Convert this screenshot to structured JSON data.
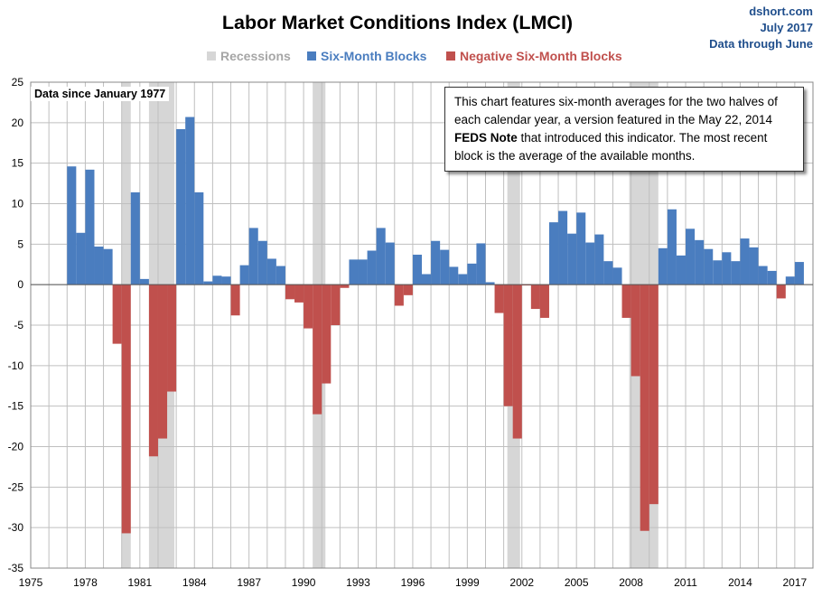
{
  "source": {
    "site": "dshort.com",
    "date": "July 2017",
    "data_through": "Data through June"
  },
  "note": {
    "part1": "This chart features six-month averages for the two halves of each calendar year, a version featured in the May 22, 2014 ",
    "bold": "FEDS Note",
    "part2": " that introduced this indicator. The most recent block is the average of the available months."
  },
  "data_since": "Data since January 1977",
  "colors": {
    "positive": "#4a7dbf",
    "negative": "#c0504d",
    "recession": "#d6d6d6",
    "title": "#000000",
    "legend_recession": "#a6a6a6",
    "grid": "#bfbfbf",
    "source": "#1f4e8c"
  },
  "chart_data": {
    "type": "bar",
    "title": "Labor Market Conditions Index  (LMCI)",
    "xlabel": "",
    "ylabel": "",
    "xlim": [
      1975,
      2018
    ],
    "ylim": [
      -35,
      25
    ],
    "y_ticks": [
      25,
      20,
      15,
      10,
      5,
      0,
      -5,
      -10,
      -15,
      -20,
      -25,
      -30,
      -35
    ],
    "x_ticks": [
      1975,
      1978,
      1981,
      1984,
      1987,
      1990,
      1993,
      1996,
      1999,
      2002,
      2005,
      2008,
      2011,
      2014,
      2017
    ],
    "grid": true,
    "legend": [
      {
        "name": "Recessions",
        "color_key": "recession"
      },
      {
        "name": "Six-Month Blocks",
        "color_key": "positive"
      },
      {
        "name": "Negative Six-Month Blocks",
        "color_key": "negative"
      }
    ],
    "recessions": [
      [
        1980.0,
        1980.5
      ],
      [
        1981.5,
        1982.9
      ],
      [
        1990.5,
        1991.2
      ],
      [
        2001.2,
        2001.9
      ],
      [
        2007.9,
        2009.5
      ]
    ],
    "series": [
      {
        "name": "Six-Month Blocks",
        "start_year": 1977.0,
        "block_years": 0.5,
        "values": [
          14.6,
          6.4,
          14.2,
          4.7,
          4.4,
          -7.3,
          -30.7,
          11.4,
          0.7,
          -21.2,
          -19.0,
          -13.2,
          19.2,
          20.7,
          11.4,
          0.4,
          1.1,
          1.0,
          -3.8,
          2.4,
          7.0,
          5.4,
          3.2,
          2.3,
          -1.8,
          -2.2,
          -5.4,
          -16.0,
          -12.2,
          -5.0,
          -0.4,
          3.1,
          3.1,
          4.2,
          7.0,
          5.2,
          -2.6,
          -1.3,
          3.7,
          1.3,
          5.4,
          4.3,
          2.2,
          1.3,
          2.6,
          5.1,
          0.3,
          -3.5,
          -15.0,
          -19.0,
          -0.1,
          -3.0,
          -4.1,
          7.7,
          9.1,
          6.3,
          8.9,
          5.2,
          6.2,
          2.9,
          2.1,
          -4.1,
          -11.3,
          -30.4,
          -27.1,
          4.5,
          9.3,
          3.6,
          6.9,
          5.5,
          4.4,
          3.0,
          4.0,
          2.9,
          5.7,
          4.6,
          2.3,
          1.7,
          -1.7,
          1.0,
          2.8
        ]
      }
    ]
  }
}
